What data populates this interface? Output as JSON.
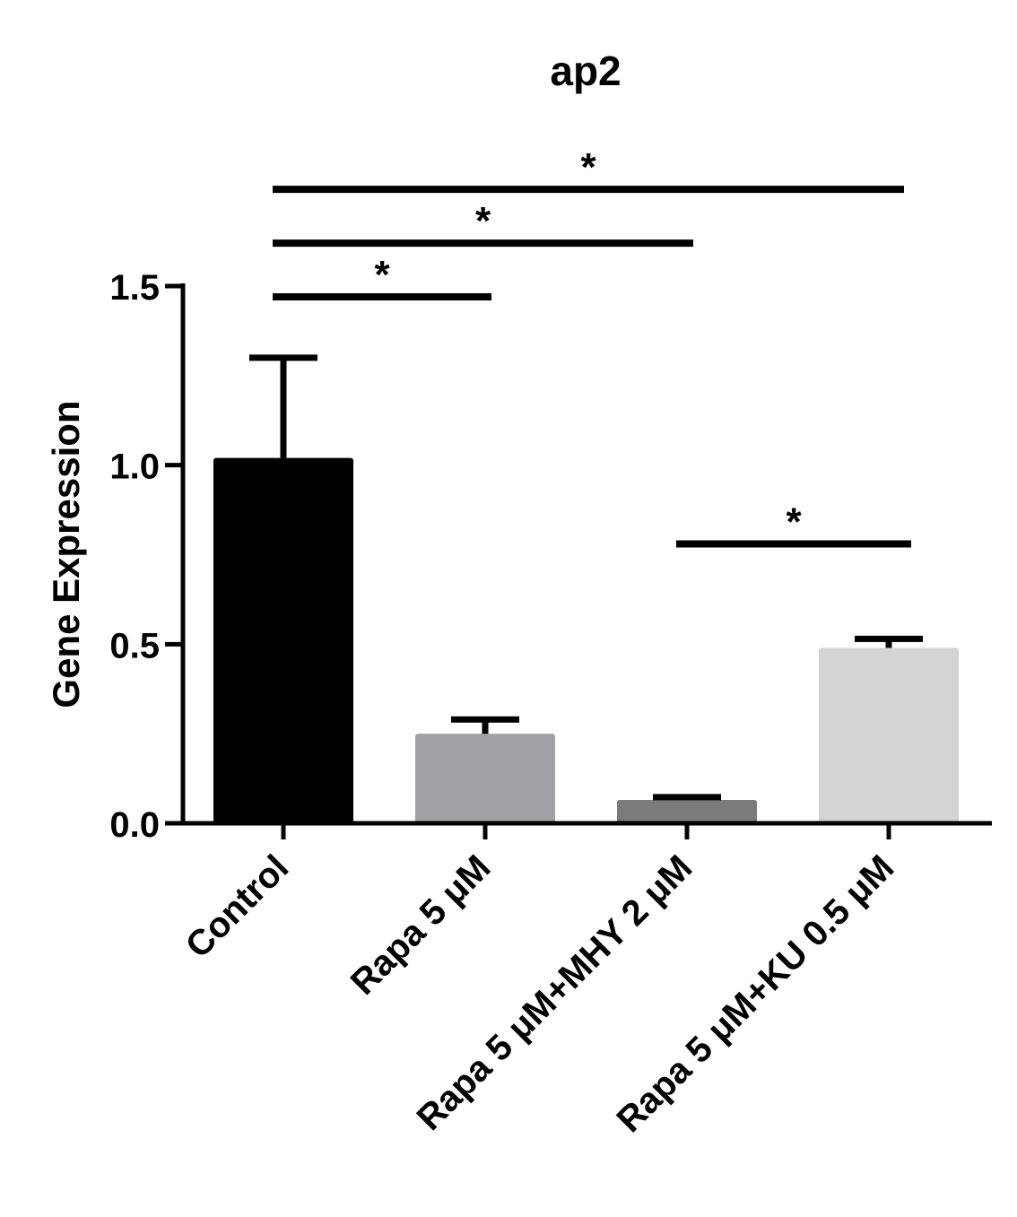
{
  "chart_data": {
    "type": "bar",
    "title": "ap2",
    "xlabel": "",
    "ylabel": "Gene Expression",
    "ylim": [
      0,
      1.5
    ],
    "yticks": [
      0.0,
      0.5,
      1.0,
      1.5
    ],
    "ytick_labels": [
      "0.0",
      "0.5",
      "1.0",
      "1.5"
    ],
    "categories": [
      "Control",
      "Rapa 5 μM",
      "Rapa 5 μM+MHY 2 μM",
      "Rapa 5 μM+KU 0.5 μM"
    ],
    "values": [
      1.02,
      0.25,
      0.065,
      0.49
    ],
    "errors": [
      0.28,
      0.04,
      0.008,
      0.025
    ],
    "colors": [
      "#000000",
      "#a2a2a6",
      "#7b7b7b",
      "#d4d4d4"
    ],
    "grid": false,
    "significance": [
      {
        "from": 0,
        "to": 1,
        "level": 1.47,
        "label": "*"
      },
      {
        "from": 0,
        "to": 2,
        "level": 1.62,
        "label": "*"
      },
      {
        "from": 0,
        "to": 3,
        "level": 1.77,
        "label": "*"
      },
      {
        "from": 2,
        "to": 3,
        "level": 0.78,
        "label": "*"
      }
    ]
  }
}
